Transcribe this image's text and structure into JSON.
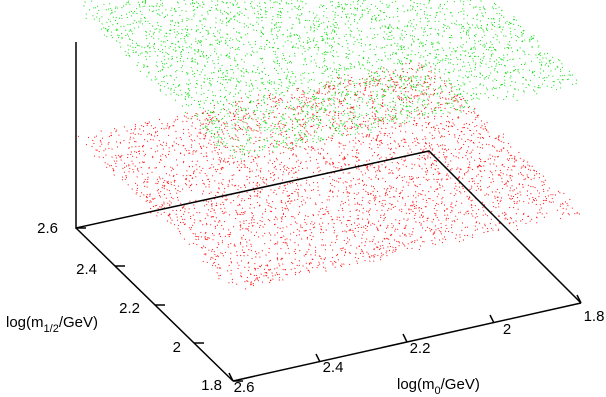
{
  "chart_data": {
    "type": "scatter",
    "title": "",
    "xlabel": {
      "prefix": "log(m",
      "sub": "0",
      "suffix": "/GeV)"
    },
    "ylabel": {
      "prefix": "log(m",
      "sub": "1/2",
      "suffix": "/GeV)"
    },
    "xlim": [
      1.8,
      2.6
    ],
    "ylim": [
      1.8,
      2.6
    ],
    "x_ticks": [
      "1.8",
      "2",
      "2.2",
      "2.4",
      "2.6"
    ],
    "y_ticks": [
      "1.8",
      "2",
      "2.2",
      "2.4",
      "2.6"
    ],
    "grid": false,
    "legend": "none",
    "series": [
      {
        "color": "#ff0000",
        "z_level": 0.35,
        "point_count": 3600
      },
      {
        "color": "#00dd00",
        "z_level": 0.85,
        "point_count": 3800
      }
    ]
  }
}
